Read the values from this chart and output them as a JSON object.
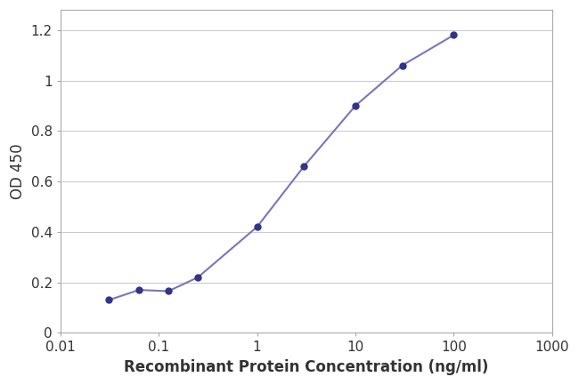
{
  "x_values": [
    0.031,
    0.063,
    0.125,
    0.25,
    1.0,
    3.0,
    10.0,
    30.0,
    100.0
  ],
  "y_values": [
    0.13,
    0.17,
    0.165,
    0.22,
    0.42,
    0.66,
    0.9,
    1.06,
    1.18
  ],
  "line_color": "#7777bb",
  "marker_color": "#333388",
  "marker_face_color": "#333388",
  "xlabel": "Recombinant Protein Concentration (ng/ml)",
  "ylabel": "OD 450",
  "xlim": [
    0.01,
    1000
  ],
  "ylim": [
    0,
    1.28
  ],
  "yticks": [
    0,
    0.2,
    0.4,
    0.6,
    0.8,
    1.0,
    1.2
  ],
  "ytick_labels": [
    "0",
    "0.2",
    "0.4",
    "0.6",
    "0.8",
    "1",
    "1.2"
  ],
  "xtick_positions": [
    0.01,
    0.1,
    1,
    10,
    100,
    1000
  ],
  "xtick_labels": [
    "0.01",
    "0.1",
    "1",
    "10",
    "100",
    "1000"
  ],
  "background_color": "#ffffff",
  "grid_color": "#cccccc",
  "xlabel_fontsize": 12,
  "ylabel_fontsize": 12,
  "tick_fontsize": 11,
  "marker_size": 5,
  "line_width": 1.5
}
